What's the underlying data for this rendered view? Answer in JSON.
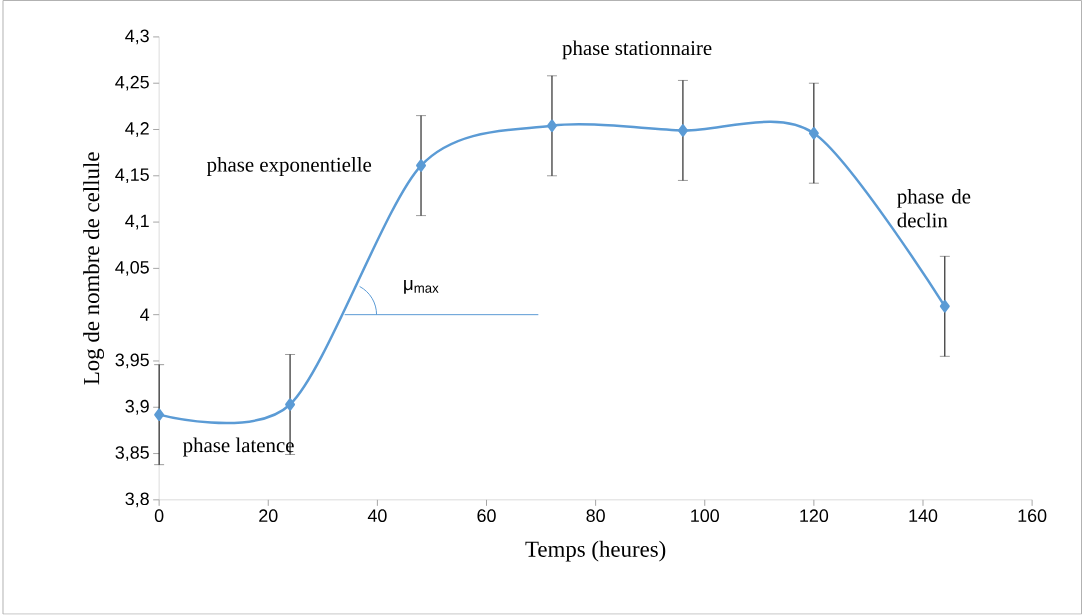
{
  "chart_data": {
    "type": "line",
    "xlabel": "Temps (heures)",
    "ylabel": "Log de nombre de cellule",
    "x": [
      0,
      24,
      48,
      72,
      96,
      120,
      144
    ],
    "values": [
      3.892,
      3.903,
      4.161,
      4.204,
      4.199,
      4.196,
      4.009
    ],
    "errors": [
      0.054,
      0.054,
      0.054,
      0.054,
      0.054,
      0.054,
      0.054
    ],
    "color": "#5b9bd5",
    "marker": "diamond",
    "line_style": "solid",
    "xlim": [
      0,
      160
    ],
    "xticks": [
      0,
      20,
      40,
      60,
      80,
      100,
      120,
      140,
      160
    ],
    "ylim": [
      3.8,
      4.3
    ],
    "yticks": [
      {
        "value": 3.8,
        "label": "3,8"
      },
      {
        "value": 3.85,
        "label": "3,85"
      },
      {
        "value": 3.9,
        "label": "3,9"
      },
      {
        "value": 3.95,
        "label": "3,95"
      },
      {
        "value": 4.0,
        "label": "4"
      },
      {
        "value": 4.05,
        "label": "4,05"
      },
      {
        "value": 4.1,
        "label": "4,1"
      },
      {
        "value": 4.15,
        "label": "4,15"
      },
      {
        "value": 4.2,
        "label": "4,2"
      },
      {
        "value": 4.25,
        "label": "4,25"
      },
      {
        "value": 4.3,
        "label": "4,3"
      }
    ],
    "annotations": [
      "phase latence",
      "phase exponentielle",
      "phase stationnaire",
      "phase de declin",
      "μ$_{max}$"
    ]
  }
}
